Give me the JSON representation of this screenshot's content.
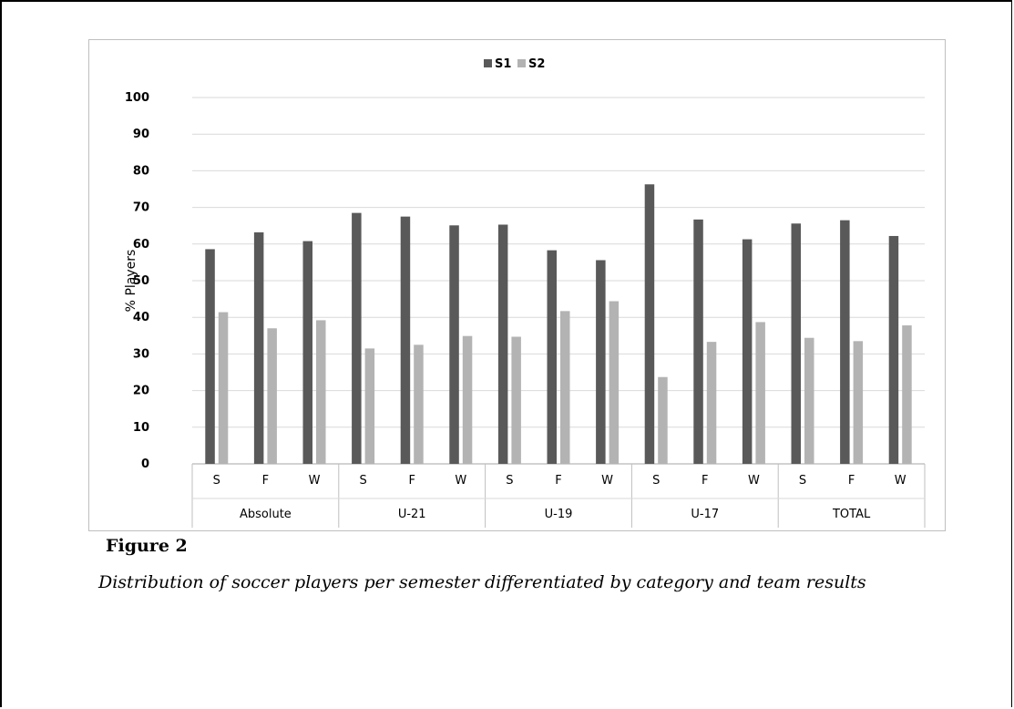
{
  "figure": {
    "label": "Figure 2",
    "caption": "Distribution of soccer players per semester differentiated by category and team results"
  },
  "chart_data": {
    "type": "bar",
    "ylabel": "% Players",
    "ylim": [
      0,
      100
    ],
    "yticks": [
      0,
      10,
      20,
      30,
      40,
      50,
      60,
      70,
      80,
      90,
      100
    ],
    "grid": true,
    "legend": "top-center",
    "groups": [
      {
        "label": "Absolute",
        "categories": [
          "S",
          "F",
          "W"
        ]
      },
      {
        "label": "U-21",
        "categories": [
          "S",
          "F",
          "W"
        ]
      },
      {
        "label": "U-19",
        "categories": [
          "S",
          "F",
          "W"
        ]
      },
      {
        "label": "U-17",
        "categories": [
          "S",
          "F",
          "W"
        ]
      },
      {
        "label": "TOTAL",
        "categories": [
          "S",
          "F",
          "W"
        ]
      }
    ],
    "series": [
      {
        "name": "S1",
        "color": "#595959",
        "values": [
          58.6,
          63.2,
          60.8,
          68.5,
          67.5,
          65.1,
          65.3,
          58.3,
          55.6,
          76.3,
          66.7,
          61.3,
          65.6,
          66.5,
          62.2
        ]
      },
      {
        "name": "S2",
        "color": "#b3b3b3",
        "values": [
          41.4,
          37.0,
          39.2,
          31.5,
          32.5,
          34.9,
          34.7,
          41.7,
          44.4,
          23.7,
          33.3,
          38.7,
          34.4,
          33.5,
          37.8
        ]
      }
    ]
  }
}
